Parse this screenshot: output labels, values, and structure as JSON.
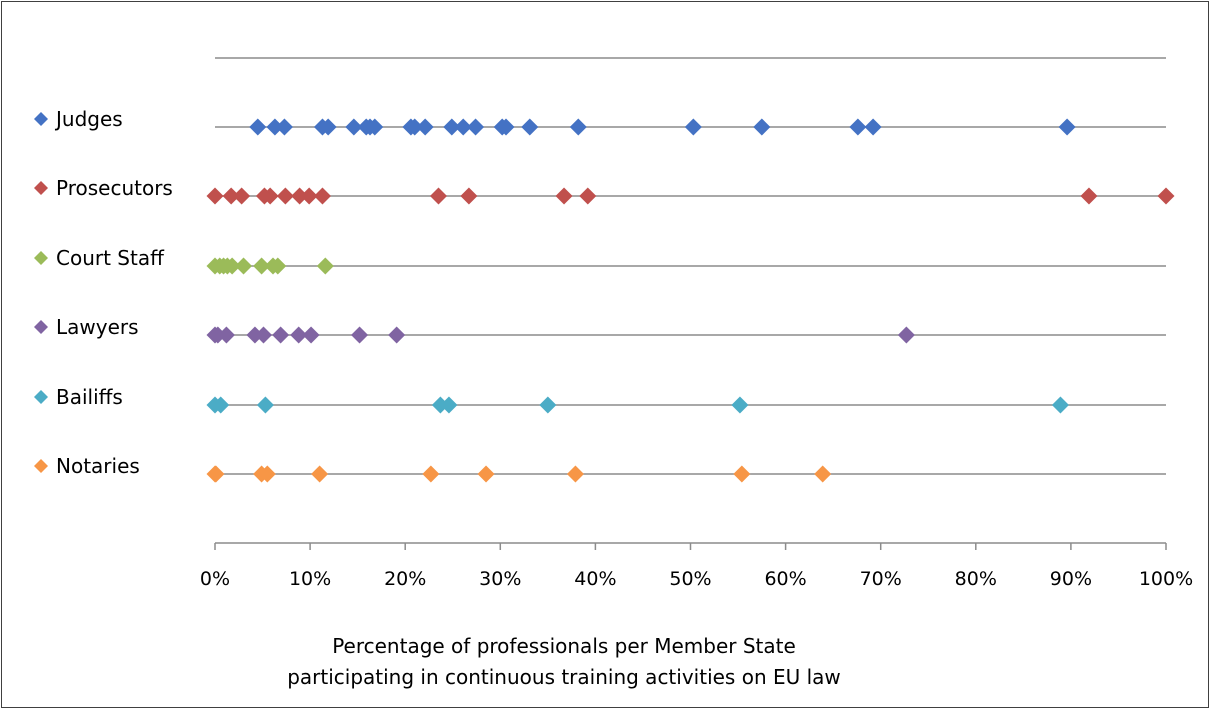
{
  "chart_data": {
    "type": "scatter",
    "title": "",
    "xlabel_lines": [
      "Percentage of professionals per Member State",
      "participating in continuous training activities on EU law"
    ],
    "ylabel": "",
    "xlim": [
      0,
      100
    ],
    "x_ticks": [
      "0%",
      "10%",
      "20%",
      "30%",
      "40%",
      "50%",
      "60%",
      "70%",
      "80%",
      "90%",
      "100%"
    ],
    "legend_position": "left",
    "grid": "horizontal lines per category",
    "marker": "diamond",
    "series": [
      {
        "name": "Judges",
        "color": "#4472C4",
        "values": [
          4.5,
          6.3,
          7.3,
          11.3,
          11.9,
          14.6,
          15.9,
          16.3,
          16.8,
          20.6,
          21.0,
          22.1,
          24.9,
          26.1,
          27.4,
          30.2,
          30.6,
          33.1,
          38.2,
          50.3,
          57.5,
          67.6,
          69.2,
          89.6
        ]
      },
      {
        "name": "Prosecutors",
        "color": "#C0504D",
        "values": [
          0.0,
          1.7,
          2.8,
          5.2,
          5.8,
          7.4,
          8.9,
          9.9,
          11.3,
          23.5,
          26.7,
          36.7,
          39.2,
          91.9,
          100.0
        ]
      },
      {
        "name": "Court Staff",
        "color": "#9BBB59",
        "values": [
          0.0,
          0.5,
          0.9,
          1.3,
          1.8,
          3.0,
          4.9,
          6.1,
          6.6,
          11.6
        ]
      },
      {
        "name": "Lawyers",
        "color": "#8064A2",
        "values": [
          0.0,
          0.3,
          1.2,
          4.2,
          5.1,
          6.9,
          8.8,
          10.1,
          15.2,
          19.1,
          72.7
        ]
      },
      {
        "name": "Bailiffs",
        "color": "#4BACC6",
        "values": [
          0.0,
          0.6,
          5.3,
          23.7,
          24.6,
          35.0,
          55.2,
          88.9
        ]
      },
      {
        "name": "Notaries",
        "color": "#F79646",
        "values": [
          0.0,
          0.1,
          4.9,
          5.5,
          11.0,
          22.7,
          28.5,
          37.9,
          55.4,
          63.9
        ]
      }
    ]
  }
}
